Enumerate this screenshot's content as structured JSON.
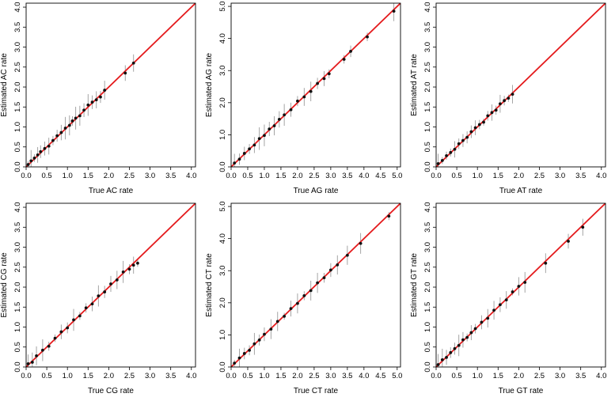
{
  "figure": {
    "layout": "2 rows x 3 columns",
    "diagonal_color": "#e41a1c",
    "point_color": "#111111",
    "errorbar_color": "#9a9a9a"
  },
  "chart_data": [
    {
      "type": "scatter",
      "xlabel": "True AC rate",
      "ylabel": "Estimated AC rate",
      "xlim": [
        0,
        4.1
      ],
      "ylim": [
        0,
        4.1
      ],
      "xticks": [
        "0.0",
        "0.5",
        "1.0",
        "1.5",
        "2.0",
        "2.5",
        "3.0",
        "3.5",
        "4.0"
      ],
      "yticks": [
        "0.0",
        "0.5",
        "1.0",
        "1.5",
        "2.0",
        "2.5",
        "3.0",
        "3.5",
        "4.0"
      ],
      "diagonal": "y = x",
      "x": [
        0.05,
        0.12,
        0.2,
        0.28,
        0.35,
        0.45,
        0.55,
        0.65,
        0.75,
        0.85,
        0.95,
        1.05,
        1.12,
        1.2,
        1.3,
        1.4,
        1.5,
        1.6,
        1.7,
        1.8,
        1.9,
        2.4,
        2.6
      ],
      "y": [
        0.06,
        0.15,
        0.22,
        0.3,
        0.38,
        0.46,
        0.52,
        0.66,
        0.78,
        0.86,
        0.97,
        1.04,
        1.15,
        1.22,
        1.28,
        1.42,
        1.55,
        1.62,
        1.68,
        1.75,
        1.92,
        2.35,
        2.6
      ]
    },
    {
      "type": "scatter",
      "xlabel": "True AG rate",
      "ylabel": "Estimated AG rate",
      "xlim": [
        0,
        5.1
      ],
      "ylim": [
        0,
        5.1
      ],
      "xticks": [
        "0.0",
        "0.5",
        "1.0",
        "1.5",
        "2.0",
        "2.5",
        "3.0",
        "3.5",
        "4.0",
        "4.5",
        "5.0"
      ],
      "yticks": [
        "0.0",
        "1.0",
        "2.0",
        "3.0",
        "4.0",
        "5.0"
      ],
      "diagonal": "y = x",
      "x": [
        0.1,
        0.25,
        0.4,
        0.55,
        0.7,
        0.85,
        1.0,
        1.15,
        1.3,
        1.45,
        1.6,
        1.8,
        2.0,
        2.2,
        2.4,
        2.6,
        2.8,
        2.95,
        3.4,
        3.6,
        4.1,
        4.9
      ],
      "y": [
        0.12,
        0.24,
        0.42,
        0.56,
        0.68,
        0.88,
        0.98,
        1.18,
        1.28,
        1.48,
        1.62,
        1.78,
        2.05,
        2.18,
        2.35,
        2.6,
        2.75,
        2.9,
        3.35,
        3.6,
        4.05,
        4.85
      ]
    },
    {
      "type": "scatter",
      "xlabel": "True AT rate",
      "ylabel": "Estimated AT rate",
      "xlim": [
        0,
        4.1
      ],
      "ylim": [
        0,
        4.1
      ],
      "xticks": [
        "0.0",
        "0.5",
        "1.0",
        "1.5",
        "2.0",
        "2.5",
        "3.0",
        "3.5",
        "4.0"
      ],
      "yticks": [
        "0.0",
        "0.5",
        "1.0",
        "1.5",
        "2.0",
        "2.5",
        "3.0",
        "3.5",
        "4.0"
      ],
      "diagonal": "y = x",
      "x": [
        0.05,
        0.15,
        0.25,
        0.35,
        0.45,
        0.55,
        0.65,
        0.75,
        0.85,
        0.95,
        1.05,
        1.15,
        1.25,
        1.35,
        1.45,
        1.55,
        1.65,
        1.75,
        1.85
      ],
      "y": [
        0.08,
        0.16,
        0.28,
        0.36,
        0.44,
        0.58,
        0.66,
        0.74,
        0.88,
        0.98,
        1.06,
        1.12,
        1.28,
        1.36,
        1.42,
        1.58,
        1.66,
        1.72,
        1.82
      ]
    },
    {
      "type": "scatter",
      "xlabel": "True CG rate",
      "ylabel": "Estimated CG rate",
      "xlim": [
        0,
        4.1
      ],
      "ylim": [
        0,
        4.1
      ],
      "xticks": [
        "0.0",
        "0.5",
        "1.0",
        "1.5",
        "2.0",
        "2.5",
        "3.0",
        "3.5",
        "4.0"
      ],
      "yticks": [
        "0.0",
        "0.5",
        "1.0",
        "1.5",
        "2.0",
        "2.5",
        "3.0",
        "3.5",
        "4.0"
      ],
      "diagonal": "y = x",
      "x": [
        0.05,
        0.15,
        0.25,
        0.4,
        0.55,
        0.7,
        0.85,
        1.0,
        1.15,
        1.3,
        1.45,
        1.6,
        1.75,
        1.9,
        2.05,
        2.2,
        2.35,
        2.5,
        2.6,
        2.7
      ],
      "y": [
        0.08,
        0.12,
        0.28,
        0.42,
        0.52,
        0.72,
        0.88,
        0.98,
        1.18,
        1.28,
        1.48,
        1.58,
        1.78,
        1.88,
        2.08,
        2.18,
        2.38,
        2.45,
        2.55,
        2.6
      ]
    },
    {
      "type": "scatter",
      "xlabel": "True CT rate",
      "ylabel": "Estimated CT rate",
      "xlim": [
        0,
        5.1
      ],
      "ylim": [
        0,
        5.1
      ],
      "xticks": [
        "0.0",
        "0.5",
        "1.0",
        "1.5",
        "2.0",
        "2.5",
        "3.0",
        "3.5",
        "4.0",
        "4.5",
        "5.0"
      ],
      "yticks": [
        "0.0",
        "1.0",
        "2.0",
        "3.0",
        "4.0",
        "5.0"
      ],
      "diagonal": "y = x",
      "x": [
        0.1,
        0.25,
        0.4,
        0.55,
        0.7,
        0.85,
        1.0,
        1.2,
        1.4,
        1.6,
        1.8,
        2.0,
        2.2,
        2.4,
        2.6,
        2.8,
        3.0,
        3.2,
        3.5,
        3.9,
        4.75
      ],
      "y": [
        0.12,
        0.28,
        0.42,
        0.52,
        0.72,
        0.84,
        1.02,
        1.18,
        1.42,
        1.58,
        1.82,
        1.98,
        2.22,
        2.38,
        2.62,
        2.78,
        3.02,
        3.18,
        3.48,
        3.85,
        4.7
      ]
    },
    {
      "type": "scatter",
      "xlabel": "True GT rate",
      "ylabel": "Estimated GT rate",
      "xlim": [
        0,
        4.1
      ],
      "ylim": [
        0,
        4.1
      ],
      "xticks": [
        "0.0",
        "0.5",
        "1.0",
        "1.5",
        "2.0",
        "2.5",
        "3.0",
        "3.5",
        "4.0"
      ],
      "yticks": [
        "0.0",
        "0.5",
        "1.0",
        "1.5",
        "2.0",
        "2.5",
        "3.0",
        "3.5",
        "4.0"
      ],
      "diagonal": "y = x",
      "x": [
        0.05,
        0.15,
        0.25,
        0.35,
        0.45,
        0.55,
        0.65,
        0.75,
        0.85,
        0.95,
        1.1,
        1.25,
        1.4,
        1.55,
        1.7,
        1.85,
        2.0,
        2.15,
        2.65,
        3.2,
        3.55
      ],
      "y": [
        0.06,
        0.18,
        0.24,
        0.36,
        0.46,
        0.54,
        0.68,
        0.74,
        0.86,
        0.96,
        1.12,
        1.22,
        1.42,
        1.56,
        1.68,
        1.88,
        2.02,
        2.12,
        2.6,
        3.15,
        3.5
      ]
    }
  ]
}
